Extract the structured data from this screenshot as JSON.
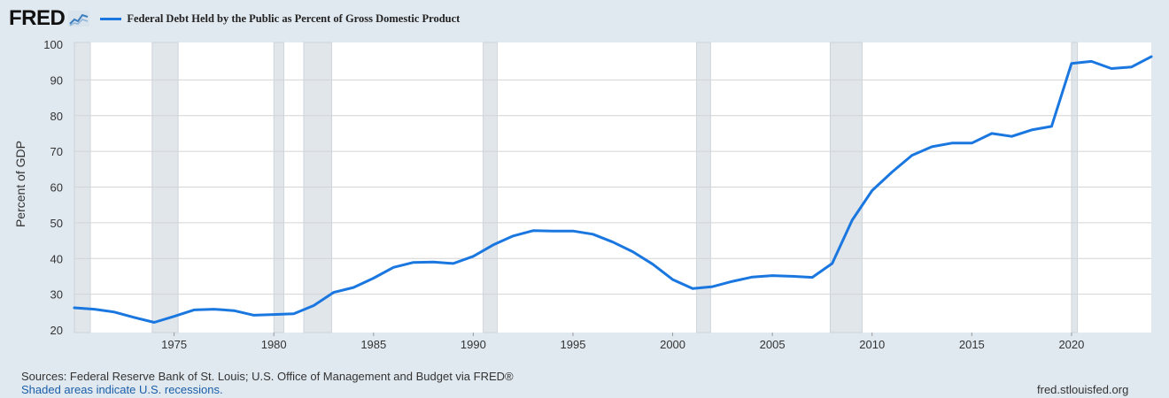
{
  "header": {
    "logo": "FRED",
    "logo_icon": "line-graph-icon"
  },
  "footer": {
    "sources": "Sources: Federal Reserve Bank of St. Louis; U.S. Office of Management and Budget via FRED®",
    "recession_note": "Shaded areas indicate U.S. recessions.",
    "site": "fred.stlouisfed.org"
  },
  "colors": {
    "series": "#1a77e0",
    "background": "#e1e9f0",
    "plot": "#ffffff",
    "recession": "#e1e6eb"
  },
  "chart_data": {
    "type": "line",
    "ylabel": "Percent of GDP",
    "xlabel": "",
    "xlim": [
      1970,
      2024
    ],
    "ylim": [
      20,
      100
    ],
    "x_ticks": [
      1975,
      1980,
      1985,
      1990,
      1995,
      2000,
      2005,
      2010,
      2015,
      2020
    ],
    "y_ticks": [
      20,
      30,
      40,
      50,
      60,
      70,
      80,
      90,
      100
    ],
    "grid": true,
    "legend_position": "top-left",
    "recessions": [
      [
        1970,
        1970.8
      ],
      [
        1973.9,
        1975.2
      ],
      [
        1980.0,
        1980.5
      ],
      [
        1981.5,
        1982.9
      ],
      [
        1990.5,
        1991.2
      ],
      [
        2001.2,
        2001.9
      ],
      [
        2007.9,
        2009.5
      ],
      [
        2020.0,
        2020.3
      ]
    ],
    "series": [
      {
        "name": "Federal Debt Held by the Public as Percent of Gross Domestic Product",
        "x": [
          1970,
          1971,
          1972,
          1973,
          1974,
          1975,
          1976,
          1977,
          1978,
          1979,
          1980,
          1981,
          1982,
          1983,
          1984,
          1985,
          1986,
          1987,
          1988,
          1989,
          1990,
          1991,
          1992,
          1993,
          1994,
          1995,
          1996,
          1997,
          1998,
          1999,
          2000,
          2001,
          2002,
          2003,
          2004,
          2005,
          2006,
          2007,
          2008,
          2009,
          2010,
          2011,
          2012,
          2013,
          2014,
          2015,
          2016,
          2017,
          2018,
          2019,
          2020,
          2021,
          2022,
          2023,
          2024
        ],
        "values": [
          26.2,
          25.8,
          25.0,
          23.5,
          22.1,
          23.8,
          25.6,
          25.8,
          25.4,
          24.1,
          24.3,
          24.5,
          26.8,
          30.5,
          31.9,
          34.5,
          37.5,
          38.9,
          39.0,
          38.6,
          40.6,
          43.8,
          46.3,
          47.8,
          47.7,
          47.7,
          46.8,
          44.6,
          41.9,
          38.4,
          34.1,
          31.6,
          32.1,
          33.6,
          34.8,
          35.2,
          35.0,
          34.7,
          38.6,
          50.7,
          59.0,
          64.2,
          68.9,
          71.3,
          72.3,
          72.3,
          75.0,
          74.2,
          76.0,
          77.0,
          94.6,
          95.2,
          93.2,
          93.6,
          96.5
        ]
      }
    ]
  }
}
